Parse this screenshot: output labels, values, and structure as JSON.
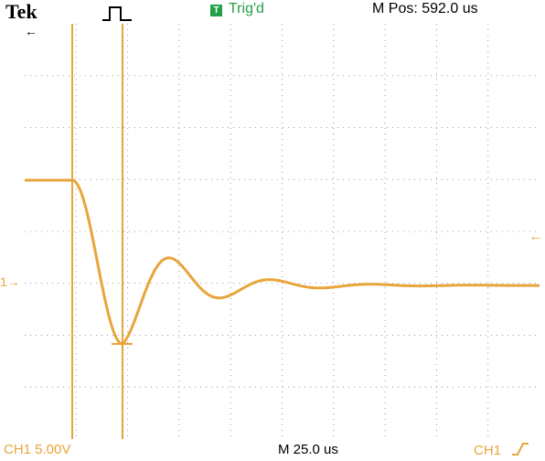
{
  "header": {
    "brand": "Tek",
    "acquisition_icon": "pulse-icon",
    "trigger_badge": "T",
    "trigger_status": "Trig'd",
    "main_position": "M Pos: 592.0 us"
  },
  "screen": {
    "grid": true,
    "ch1_marker": "1→",
    "position_marker": "←",
    "trigger_marker": "←",
    "trace_color": "#e8a53c",
    "cursor_color": "#e8a53c"
  },
  "footer": {
    "ch1_scale": "CH1  5.00V",
    "timebase": "M 25.0 us",
    "trigger_source": "CH1",
    "trigger_slope_icon": "rising-edge-icon"
  }
}
